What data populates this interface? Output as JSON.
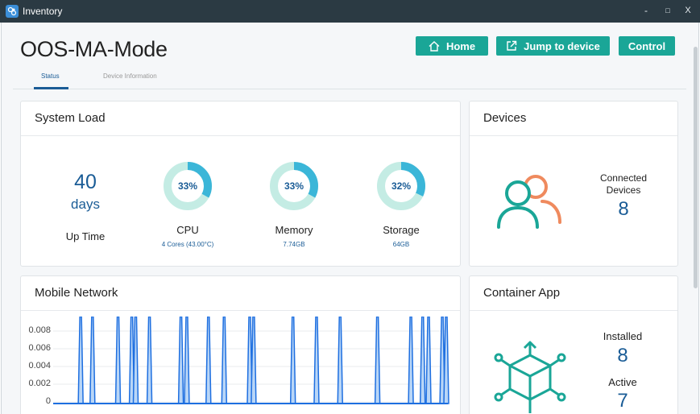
{
  "window": {
    "title": "Inventory",
    "minimize": "-",
    "maximize": "□",
    "close": "X"
  },
  "header": {
    "title": "OOS-MA-Mode",
    "buttons": {
      "home": "Home",
      "jump": "Jump to device",
      "control": "Control"
    }
  },
  "tabs": {
    "status": "Status",
    "device_info": "Device Information"
  },
  "system_load": {
    "title": "System Load",
    "uptime": {
      "value": "40",
      "unit": "days",
      "label": "Up Time"
    },
    "cpu": {
      "percent": "33%",
      "fraction": 0.33,
      "label": "CPU",
      "detail": "4 Cores (43.00°C)"
    },
    "memory": {
      "percent": "33%",
      "fraction": 0.33,
      "label": "Memory",
      "detail": "7.74GB"
    },
    "storage": {
      "percent": "32%",
      "fraction": 0.32,
      "label": "Storage",
      "detail": "64GB"
    }
  },
  "devices": {
    "title": "Devices",
    "label": "Connected Devices",
    "count": "8"
  },
  "mobile_network": {
    "title": "Mobile Network",
    "y_ticks": [
      "0.008",
      "0.006",
      "0.004",
      "0.002",
      "0"
    ]
  },
  "container_app": {
    "title": "Container App",
    "installed_label": "Installed",
    "installed": "8",
    "active_label": "Active",
    "active": "7"
  },
  "colors": {
    "accent": "#1aa697",
    "value_blue": "#1a5c96",
    "donut_fill": "#3bb6d8",
    "donut_track": "#c4ece4",
    "chart_line": "#1e6fe0"
  },
  "chart_data": {
    "type": "area",
    "title": "Mobile Network",
    "ylim": [
      0,
      0.009
    ],
    "y_ticks": [
      0,
      0.002,
      0.004,
      0.006,
      0.008
    ],
    "spikes": [
      0.07,
      0.1,
      0.165,
      0.2,
      0.21,
      0.245,
      0.325,
      0.34,
      0.395,
      0.435,
      0.5,
      0.51,
      0.61,
      0.67,
      0.73,
      0.825,
      0.91,
      0.94,
      0.955,
      0.99,
      1.0
    ],
    "spike_value": 0.0098
  }
}
